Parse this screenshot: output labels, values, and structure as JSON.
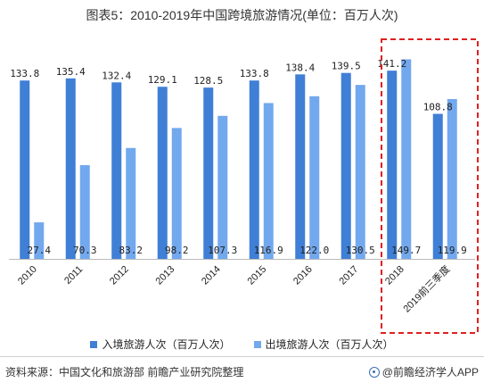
{
  "title": "图表5：2010-2019年中国跨境旅游情况(单位：百万人次)",
  "source": "资料来源：中国文化和旅游部 前瞻产业研究院整理",
  "brand": "@前瞻经济学人APP",
  "colors": {
    "inbound": "#3f7fd6",
    "outbound": "#72a8ee",
    "highlight": "#e02020"
  },
  "chart_data": {
    "type": "bar",
    "categories": [
      "2010",
      "2011",
      "2012",
      "2013",
      "2014",
      "2015",
      "2016",
      "2017",
      "2018",
      "2019前三季度"
    ],
    "series": [
      {
        "name": "入境旅游人次（百万人次）",
        "values": [
          133.8,
          135.4,
          132.4,
          129.1,
          128.5,
          133.8,
          138.4,
          139.5,
          141.2,
          108.8
        ]
      },
      {
        "name": "出境旅游人次（百万人次）",
        "values": [
          27.4,
          70.3,
          83.2,
          98.2,
          107.3,
          116.9,
          122.0,
          130.5,
          149.7,
          119.9
        ]
      }
    ],
    "value_labels": [
      [
        "133.8",
        "135.4",
        "132.4",
        "129.1",
        "128.5",
        "133.8",
        "138.4",
        "139.5",
        "141.2",
        "108.8"
      ],
      [
        "27.4",
        "70.3",
        "83.2",
        "98.2",
        "107.3",
        "116.9",
        "122.0",
        "130.5",
        "149.7",
        "119.9"
      ]
    ],
    "ylim": [
      0,
      150
    ],
    "highlighted_categories": [
      "2018",
      "2019前三季度"
    ],
    "legend_position": "bottom",
    "grid": false
  }
}
